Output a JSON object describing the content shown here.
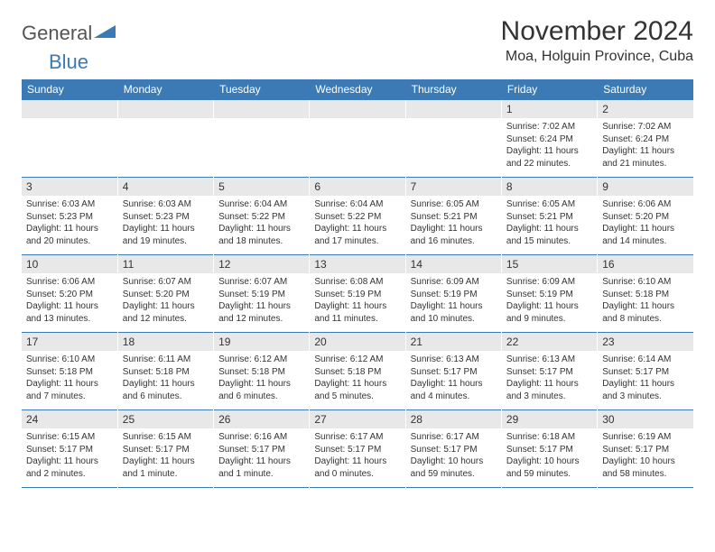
{
  "logo": {
    "text1": "General",
    "text2": "Blue"
  },
  "title": "November 2024",
  "location": "Moa, Holguin Province, Cuba",
  "colors": {
    "header_bg": "#3b7ab5",
    "daynum_bg": "#e8e8e8",
    "border": "#3b7ab5",
    "text": "#333333",
    "white": "#ffffff"
  },
  "day_headers": [
    "Sunday",
    "Monday",
    "Tuesday",
    "Wednesday",
    "Thursday",
    "Friday",
    "Saturday"
  ],
  "weeks": [
    [
      null,
      null,
      null,
      null,
      null,
      {
        "n": "1",
        "sunrise": "Sunrise: 7:02 AM",
        "sunset": "Sunset: 6:24 PM",
        "daylight": "Daylight: 11 hours and 22 minutes."
      },
      {
        "n": "2",
        "sunrise": "Sunrise: 7:02 AM",
        "sunset": "Sunset: 6:24 PM",
        "daylight": "Daylight: 11 hours and 21 minutes."
      }
    ],
    [
      {
        "n": "3",
        "sunrise": "Sunrise: 6:03 AM",
        "sunset": "Sunset: 5:23 PM",
        "daylight": "Daylight: 11 hours and 20 minutes."
      },
      {
        "n": "4",
        "sunrise": "Sunrise: 6:03 AM",
        "sunset": "Sunset: 5:23 PM",
        "daylight": "Daylight: 11 hours and 19 minutes."
      },
      {
        "n": "5",
        "sunrise": "Sunrise: 6:04 AM",
        "sunset": "Sunset: 5:22 PM",
        "daylight": "Daylight: 11 hours and 18 minutes."
      },
      {
        "n": "6",
        "sunrise": "Sunrise: 6:04 AM",
        "sunset": "Sunset: 5:22 PM",
        "daylight": "Daylight: 11 hours and 17 minutes."
      },
      {
        "n": "7",
        "sunrise": "Sunrise: 6:05 AM",
        "sunset": "Sunset: 5:21 PM",
        "daylight": "Daylight: 11 hours and 16 minutes."
      },
      {
        "n": "8",
        "sunrise": "Sunrise: 6:05 AM",
        "sunset": "Sunset: 5:21 PM",
        "daylight": "Daylight: 11 hours and 15 minutes."
      },
      {
        "n": "9",
        "sunrise": "Sunrise: 6:06 AM",
        "sunset": "Sunset: 5:20 PM",
        "daylight": "Daylight: 11 hours and 14 minutes."
      }
    ],
    [
      {
        "n": "10",
        "sunrise": "Sunrise: 6:06 AM",
        "sunset": "Sunset: 5:20 PM",
        "daylight": "Daylight: 11 hours and 13 minutes."
      },
      {
        "n": "11",
        "sunrise": "Sunrise: 6:07 AM",
        "sunset": "Sunset: 5:20 PM",
        "daylight": "Daylight: 11 hours and 12 minutes."
      },
      {
        "n": "12",
        "sunrise": "Sunrise: 6:07 AM",
        "sunset": "Sunset: 5:19 PM",
        "daylight": "Daylight: 11 hours and 12 minutes."
      },
      {
        "n": "13",
        "sunrise": "Sunrise: 6:08 AM",
        "sunset": "Sunset: 5:19 PM",
        "daylight": "Daylight: 11 hours and 11 minutes."
      },
      {
        "n": "14",
        "sunrise": "Sunrise: 6:09 AM",
        "sunset": "Sunset: 5:19 PM",
        "daylight": "Daylight: 11 hours and 10 minutes."
      },
      {
        "n": "15",
        "sunrise": "Sunrise: 6:09 AM",
        "sunset": "Sunset: 5:19 PM",
        "daylight": "Daylight: 11 hours and 9 minutes."
      },
      {
        "n": "16",
        "sunrise": "Sunrise: 6:10 AM",
        "sunset": "Sunset: 5:18 PM",
        "daylight": "Daylight: 11 hours and 8 minutes."
      }
    ],
    [
      {
        "n": "17",
        "sunrise": "Sunrise: 6:10 AM",
        "sunset": "Sunset: 5:18 PM",
        "daylight": "Daylight: 11 hours and 7 minutes."
      },
      {
        "n": "18",
        "sunrise": "Sunrise: 6:11 AM",
        "sunset": "Sunset: 5:18 PM",
        "daylight": "Daylight: 11 hours and 6 minutes."
      },
      {
        "n": "19",
        "sunrise": "Sunrise: 6:12 AM",
        "sunset": "Sunset: 5:18 PM",
        "daylight": "Daylight: 11 hours and 6 minutes."
      },
      {
        "n": "20",
        "sunrise": "Sunrise: 6:12 AM",
        "sunset": "Sunset: 5:18 PM",
        "daylight": "Daylight: 11 hours and 5 minutes."
      },
      {
        "n": "21",
        "sunrise": "Sunrise: 6:13 AM",
        "sunset": "Sunset: 5:17 PM",
        "daylight": "Daylight: 11 hours and 4 minutes."
      },
      {
        "n": "22",
        "sunrise": "Sunrise: 6:13 AM",
        "sunset": "Sunset: 5:17 PM",
        "daylight": "Daylight: 11 hours and 3 minutes."
      },
      {
        "n": "23",
        "sunrise": "Sunrise: 6:14 AM",
        "sunset": "Sunset: 5:17 PM",
        "daylight": "Daylight: 11 hours and 3 minutes."
      }
    ],
    [
      {
        "n": "24",
        "sunrise": "Sunrise: 6:15 AM",
        "sunset": "Sunset: 5:17 PM",
        "daylight": "Daylight: 11 hours and 2 minutes."
      },
      {
        "n": "25",
        "sunrise": "Sunrise: 6:15 AM",
        "sunset": "Sunset: 5:17 PM",
        "daylight": "Daylight: 11 hours and 1 minute."
      },
      {
        "n": "26",
        "sunrise": "Sunrise: 6:16 AM",
        "sunset": "Sunset: 5:17 PM",
        "daylight": "Daylight: 11 hours and 1 minute."
      },
      {
        "n": "27",
        "sunrise": "Sunrise: 6:17 AM",
        "sunset": "Sunset: 5:17 PM",
        "daylight": "Daylight: 11 hours and 0 minutes."
      },
      {
        "n": "28",
        "sunrise": "Sunrise: 6:17 AM",
        "sunset": "Sunset: 5:17 PM",
        "daylight": "Daylight: 10 hours and 59 minutes."
      },
      {
        "n": "29",
        "sunrise": "Sunrise: 6:18 AM",
        "sunset": "Sunset: 5:17 PM",
        "daylight": "Daylight: 10 hours and 59 minutes."
      },
      {
        "n": "30",
        "sunrise": "Sunrise: 6:19 AM",
        "sunset": "Sunset: 5:17 PM",
        "daylight": "Daylight: 10 hours and 58 minutes."
      }
    ]
  ]
}
